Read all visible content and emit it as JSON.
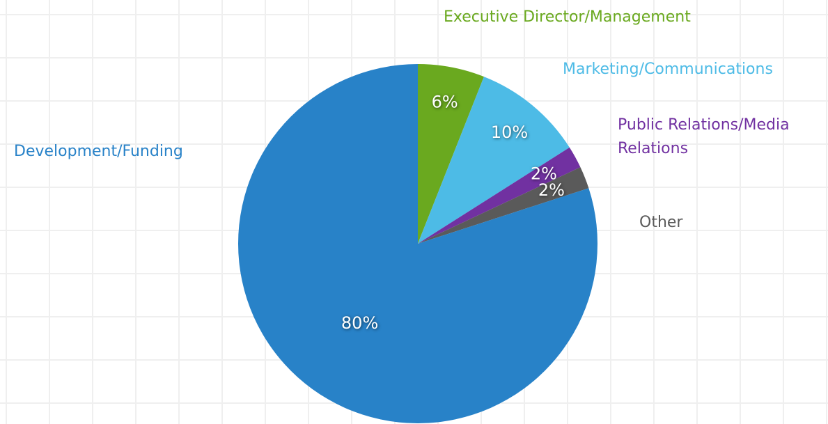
{
  "chart_data": {
    "type": "pie",
    "categories": [
      "Executive Director/Management",
      "Marketing/Communications",
      "Public Relations/Media Relations",
      "Other",
      "Development/Funding"
    ],
    "values": [
      6,
      10,
      2,
      2,
      80
    ],
    "value_labels": [
      "6%",
      "10%",
      "2%",
      "2%",
      "80%"
    ],
    "colors": [
      "#6aa91f",
      "#4dbbe6",
      "#7131a1",
      "#5a5a5a",
      "#2882c8"
    ]
  }
}
